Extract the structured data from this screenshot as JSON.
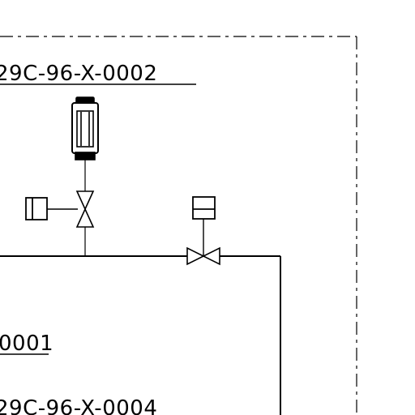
{
  "diagram": {
    "tags": {
      "top": "29C-96-X-0002",
      "middle": "0001",
      "bottom": "29C-96-X-0004"
    },
    "components": {
      "instrument": "instrument-gauge",
      "actuator_left": "valve-actuator",
      "actuator_right": "valve-actuator",
      "valve_vertical": "gate-valve",
      "valve_horizontal": "gate-valve"
    },
    "colors": {
      "line": "#000000",
      "background": "#ffffff"
    }
  }
}
